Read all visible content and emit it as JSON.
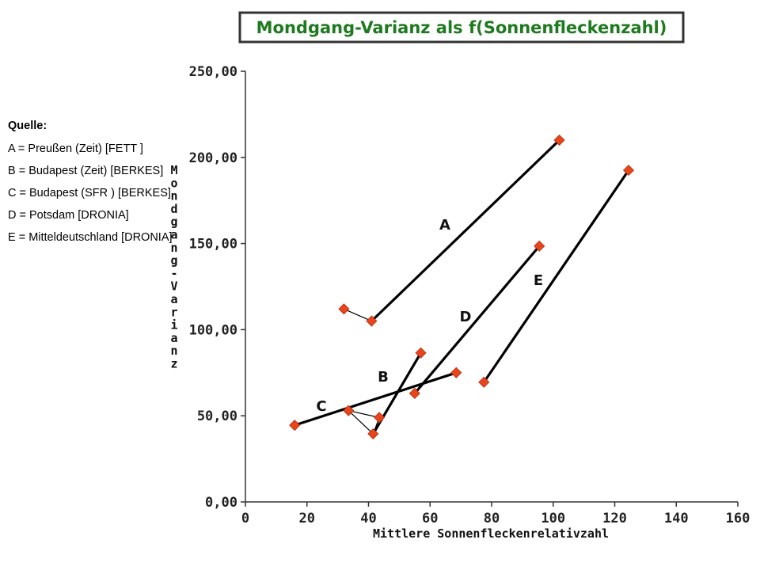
{
  "legend": {
    "title": "Quelle:",
    "items": [
      "A = Preußen  (Zeit) [FETT ]",
      "B = Budapest  (Zeit) [BERKES]",
      "C = Budapest  (SFR  ) [BERKES]",
      "D = Potsdam  [DRONIA]",
      "E = Mitteldeutschland [DRONIA]"
    ]
  },
  "chart_data": {
    "type": "line",
    "title": "Mondgang-Varianz als f(Sonnenfleckenzahl)",
    "xlabel": "Mittlere Sonnenfleckenrelativzahl",
    "ylabel": "Mondgang-Varianz",
    "xlim": [
      0,
      160
    ],
    "ylim": [
      0,
      250
    ],
    "xticks": [
      0,
      20,
      40,
      60,
      80,
      100,
      120,
      140,
      160
    ],
    "yticks": [
      0,
      50,
      100,
      150,
      200,
      250
    ],
    "ytick_labels": [
      "0,00",
      "50,00",
      "100,00",
      "150,00",
      "200,00",
      "250,00"
    ],
    "marker_color": "#e8451c",
    "line_color": "#000000",
    "title_color": "#1e7a1e",
    "series": [
      {
        "name": "A",
        "points": [
          [
            32,
            112
          ],
          [
            41,
            105
          ],
          [
            102,
            210
          ]
        ]
      },
      {
        "name": "B",
        "points": [
          [
            43.5,
            49
          ],
          [
            41.5,
            39.5
          ],
          [
            57,
            86.5
          ]
        ]
      },
      {
        "name": "C",
        "points": [
          [
            16,
            44.5
          ],
          [
            68.5,
            75
          ]
        ]
      },
      {
        "name": "D",
        "points": [
          [
            55,
            63
          ],
          [
            95.5,
            148.5
          ]
        ]
      },
      {
        "name": "E",
        "points": [
          [
            77.5,
            69.5
          ],
          [
            124.5,
            192.5
          ]
        ]
      }
    ]
  }
}
